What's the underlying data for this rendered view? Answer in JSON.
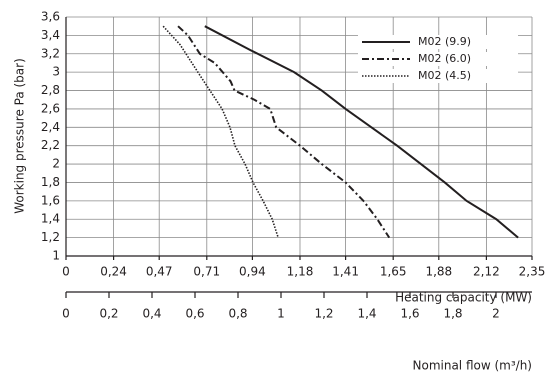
{
  "chart_data": {
    "type": "line",
    "ylabel": "Working pressure Pa (bar)",
    "xlabel": "Heating capacity (MW)",
    "x2label": "Nominal flow (m³/h)",
    "xlim": [
      0,
      2.35
    ],
    "xticks": [
      0,
      {
        "value": 0.24,
        "label": "0,24"
      },
      {
        "value": 0.47,
        "label": "0,47"
      },
      {
        "value": 0.71,
        "label": "0,71"
      },
      {
        "value": 0.94,
        "label": "0,94"
      },
      {
        "value": 1.18,
        "label": "1,18"
      },
      {
        "value": 1.41,
        "label": "1,41"
      },
      {
        "value": 1.65,
        "label": "1,65"
      },
      {
        "value": 1.88,
        "label": "1,88"
      },
      {
        "value": 2.12,
        "label": "2,12"
      },
      {
        "value": 2.35,
        "label": "2,35"
      }
    ],
    "x2lim": [
      0,
      2
    ],
    "x2ticks": [
      0,
      {
        "value": 0.2,
        "label": "0,2"
      },
      {
        "value": 0.4,
        "label": "0,4"
      },
      {
        "value": 0.6,
        "label": "0,6"
      },
      {
        "value": 0.8,
        "label": "0,8"
      },
      1,
      {
        "value": 1.2,
        "label": "1,2"
      },
      {
        "value": 1.4,
        "label": "1,4"
      },
      {
        "value": 1.6,
        "label": "1,6"
      },
      {
        "value": 1.8,
        "label": "1,8"
      },
      2
    ],
    "ylim": [
      1,
      3.6
    ],
    "yticks": [
      1,
      {
        "value": 1.2,
        "label": "1,2"
      },
      {
        "value": 1.4,
        "label": "1,4"
      },
      {
        "value": 1.6,
        "label": "1,6"
      },
      {
        "value": 1.8,
        "label": "1,8"
      },
      2,
      {
        "value": 2.2,
        "label": "2,2"
      },
      {
        "value": 2.4,
        "label": "2,4"
      },
      {
        "value": 2.6,
        "label": "2,6"
      },
      {
        "value": 2.8,
        "label": "2,8"
      },
      3,
      {
        "value": 3.2,
        "label": "3,2"
      },
      {
        "value": 3.4,
        "label": "3,4"
      },
      {
        "value": 3.6,
        "label": "3,6"
      }
    ],
    "grid": true,
    "legend": "top-right",
    "series": [
      {
        "name": "M02 (9.9)",
        "color": "#231f20",
        "dash": "solid",
        "x": [
          0.7,
          0.93,
          1.15,
          1.29,
          1.41,
          1.54,
          1.67,
          1.79,
          1.91,
          2.02,
          2.17,
          2.28
        ],
        "values": [
          3.5,
          3.24,
          3.0,
          2.8,
          2.6,
          2.4,
          2.2,
          2.0,
          1.8,
          1.6,
          1.4,
          1.2
        ]
      },
      {
        "name": "M02 (6.0)",
        "color": "#231f20",
        "dash": "dashdot",
        "x": [
          0.565,
          0.615,
          0.675,
          0.75,
          0.83,
          0.85,
          0.95,
          1.03,
          1.06,
          1.18,
          1.29,
          1.41,
          1.5,
          1.57,
          1.63
        ],
        "values": [
          3.5,
          3.4,
          3.2,
          3.1,
          2.9,
          2.8,
          2.7,
          2.6,
          2.4,
          2.2,
          2.0,
          1.8,
          1.6,
          1.4,
          1.2
        ]
      },
      {
        "name": "M02 (4.5)",
        "color": "#231f20",
        "dash": "dotted",
        "x": [
          0.49,
          0.575,
          0.665,
          0.726,
          0.787,
          0.827,
          0.852,
          0.903,
          0.943,
          0.994,
          1.04,
          1.07
        ],
        "values": [
          3.5,
          3.3,
          3.0,
          2.8,
          2.6,
          2.4,
          2.2,
          2.0,
          1.8,
          1.6,
          1.4,
          1.2
        ]
      }
    ]
  }
}
